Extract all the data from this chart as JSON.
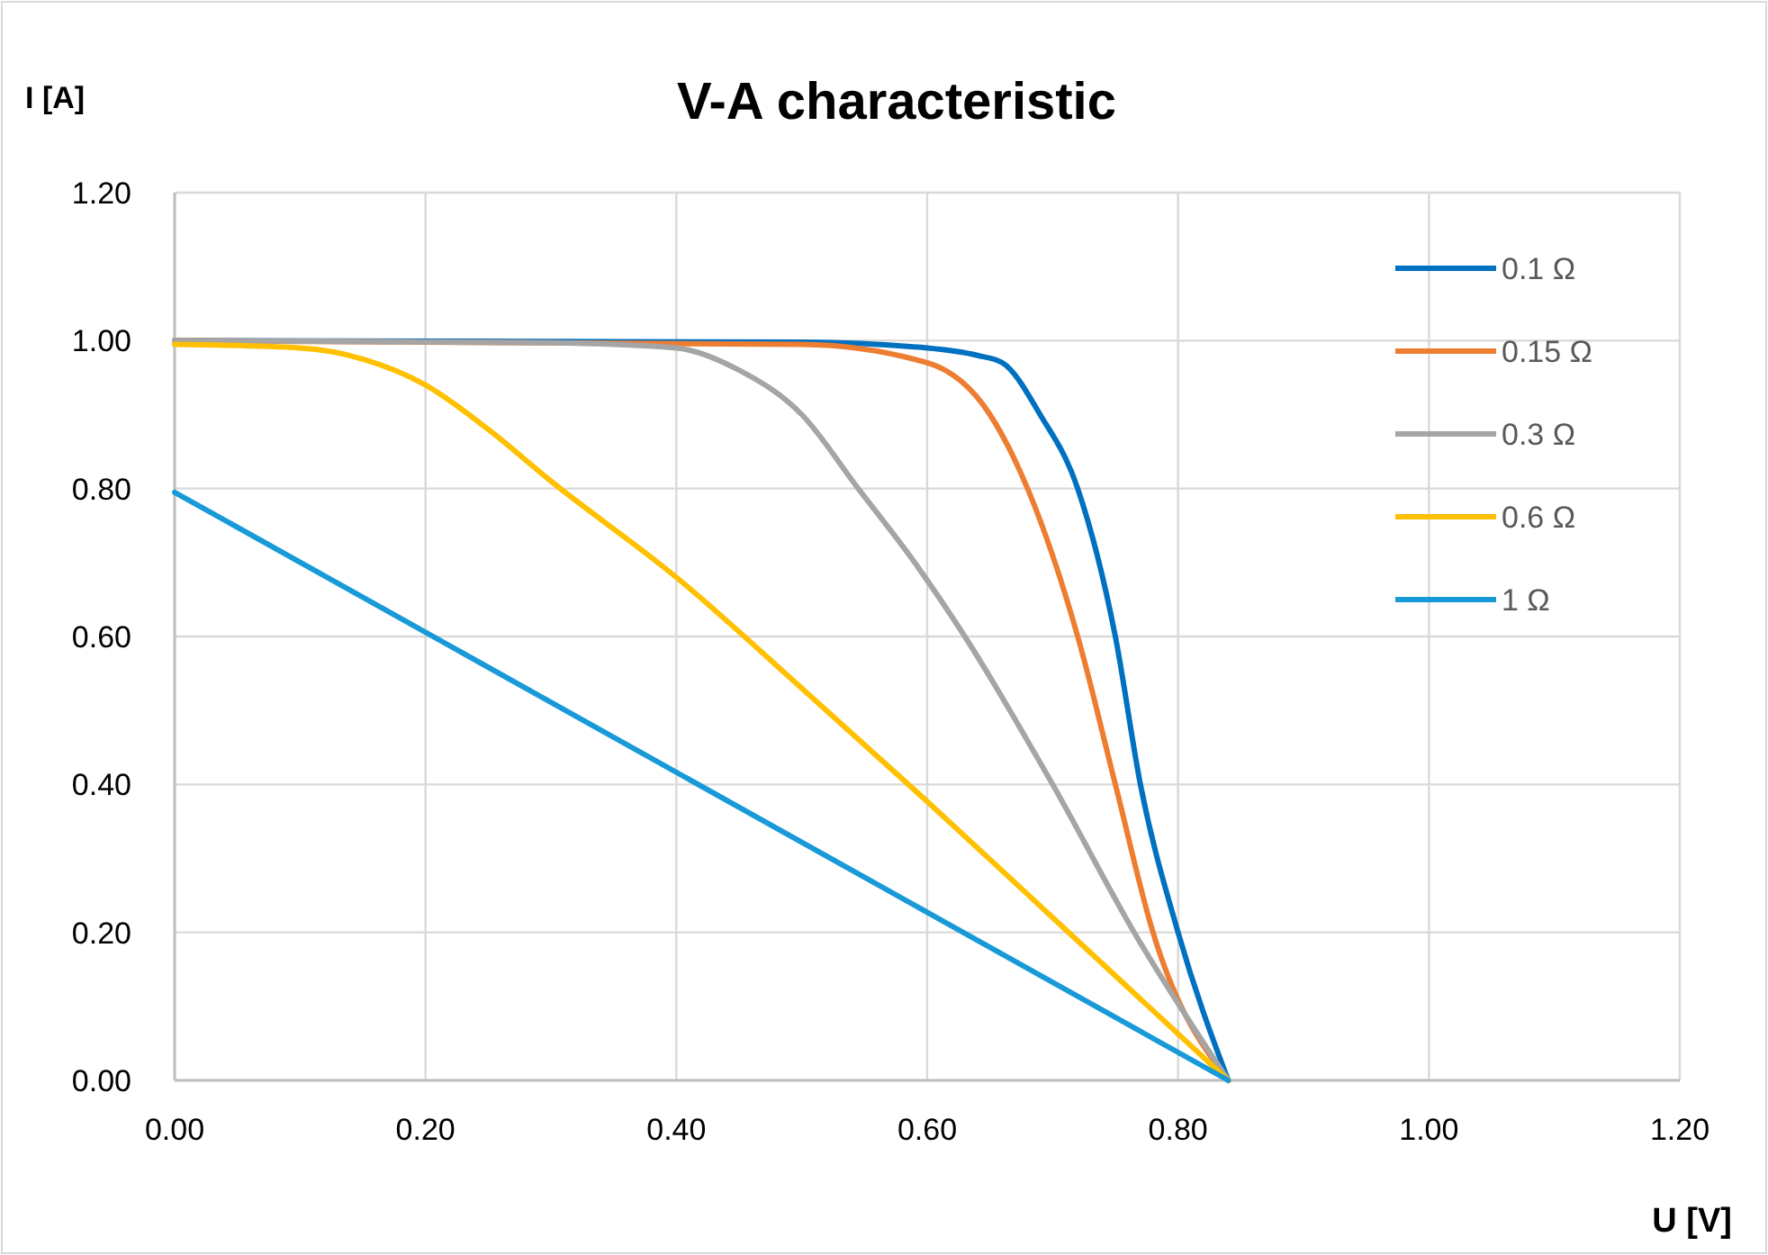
{
  "chart_data": {
    "type": "line",
    "title": "V-A characteristic",
    "xlabel": "U [V]",
    "ylabel": "I [A]",
    "xlim": [
      0,
      1.2
    ],
    "ylim": [
      0,
      1.2
    ],
    "xticks": [
      {
        "value": 0,
        "label": "0.00"
      },
      {
        "value": 0.2,
        "label": "0.20"
      },
      {
        "value": 0.4,
        "label": "0.40"
      },
      {
        "value": 0.6,
        "label": "0.60"
      },
      {
        "value": 0.8,
        "label": "0.80"
      },
      {
        "value": 1,
        "label": "1.00"
      },
      {
        "value": 1.2,
        "label": "1.20"
      }
    ],
    "yticks": [
      {
        "value": 0,
        "label": "0.00"
      },
      {
        "value": 0.2,
        "label": "0.20"
      },
      {
        "value": 0.4,
        "label": "0.40"
      },
      {
        "value": 0.6,
        "label": "0.60"
      },
      {
        "value": 0.8,
        "label": "0.80"
      },
      {
        "value": 1,
        "label": "1.00"
      },
      {
        "value": 1.2,
        "label": "1.20"
      }
    ],
    "grid": true,
    "legend": "top right",
    "marker": "none",
    "line_style": "solid",
    "series": [
      {
        "name": "0.1 Ω",
        "color": "#0070c0",
        "x": [
          0,
          0.5,
          0.6,
          0.64,
          0.66,
          0.69,
          0.72,
          0.75,
          0.77,
          0.8,
          0.84
        ],
        "values": [
          1.0,
          0.998,
          0.99,
          0.98,
          0.97,
          0.9,
          0.8,
          0.6,
          0.4,
          0.2,
          0
        ]
      },
      {
        "name": "0.15 Ω",
        "color": "#ed7d31",
        "x": [
          0,
          0.5,
          0.6,
          0.65,
          0.68,
          0.72,
          0.75,
          0.78,
          0.84
        ],
        "values": [
          1.0,
          0.995,
          0.97,
          0.9,
          0.8,
          0.6,
          0.4,
          0.2,
          0
        ]
      },
      {
        "name": "0.3 Ω",
        "color": "#a5a5a5",
        "x": [
          0,
          0.3,
          0.4,
          0.45,
          0.5,
          0.545,
          0.59,
          0.63,
          0.7,
          0.765,
          0.84
        ],
        "values": [
          1.0,
          0.997,
          0.99,
          0.96,
          0.9,
          0.8,
          0.7,
          0.6,
          0.4,
          0.2,
          0
        ]
      },
      {
        "name": "0.6 Ω",
        "color": "#ffc000",
        "x": [
          0,
          0.1,
          0.15,
          0.2,
          0.25,
          0.3,
          0.4,
          0.5,
          0.6,
          0.7,
          0.84
        ],
        "values": [
          0.995,
          0.99,
          0.975,
          0.94,
          0.88,
          0.81,
          0.68,
          0.53,
          0.377,
          0.22,
          0
        ]
      },
      {
        "name": "1 Ω",
        "color": "#199ad8",
        "x": [
          0,
          0.84
        ],
        "values": [
          0.795,
          0
        ]
      }
    ]
  }
}
